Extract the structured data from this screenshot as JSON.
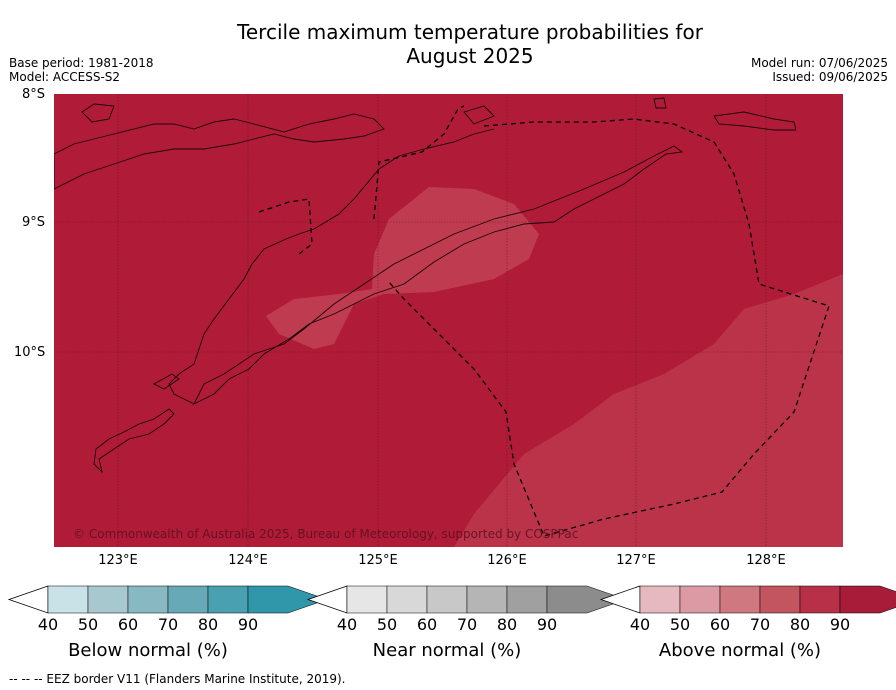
{
  "title_line1": "Tercile maximum temperature probabilities for",
  "title_line2": "August 2025",
  "meta_left": [
    "Base period: 1981-2018",
    "Model: ACCESS-S2"
  ],
  "meta_right": [
    "Model run: 07/06/2025",
    "Issued: 09/06/2025"
  ],
  "lat_labels": [
    "8°S",
    "9°S",
    "10°S"
  ],
  "lon_labels": [
    "123°E",
    "124°E",
    "125°E",
    "126°E",
    "127°E",
    "128°E"
  ],
  "credit": "© Commonwealth of Australia 2025, Bureau of Meteorology, supported by COSPPac",
  "colorbars": [
    {
      "title": "Below normal (%)",
      "ticks": [
        "40",
        "50",
        "60",
        "70",
        "80",
        "90"
      ],
      "colors": [
        "#c9e2e8",
        "#a8c8cf",
        "#88b8c2",
        "#68a9b7",
        "#48a0b0",
        "#2f97a9"
      ]
    },
    {
      "title": "Near normal (%)",
      "ticks": [
        "40",
        "50",
        "60",
        "70",
        "80",
        "90"
      ],
      "colors": [
        "#e6e6e6",
        "#d8d8d8",
        "#c8c8c8",
        "#b5b5b5",
        "#a0a0a0",
        "#8c8c8c"
      ]
    },
    {
      "title": "Above normal (%)",
      "ticks": [
        "40",
        "50",
        "60",
        "70",
        "80",
        "90"
      ],
      "colors": [
        "#e6b8c0",
        "#dc9aa4",
        "#cf7880",
        "#c25560",
        "#b83048",
        "#a81c3a"
      ]
    }
  ],
  "colors": {
    "field_dark": "#b01c38",
    "field_light": "#bc3348",
    "near_normal_patch": "#c24052"
  },
  "footnote": "--  --  -- EEZ border V11 (Flanders Marine Institute, 2019)."
}
